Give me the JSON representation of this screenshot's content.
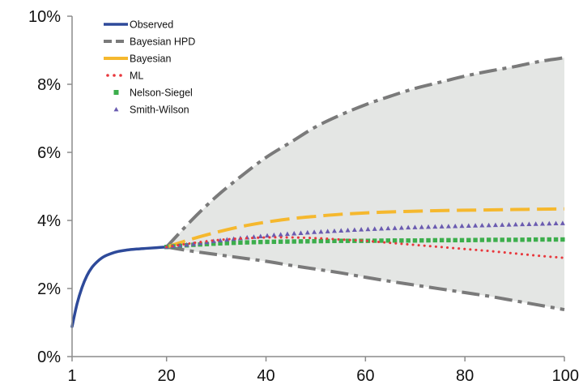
{
  "chart_data": {
    "type": "line",
    "title": "",
    "xlabel": "",
    "ylabel": "",
    "xlim": [
      1,
      100
    ],
    "ylim": [
      0,
      10
    ],
    "x_ticks": [
      1,
      20,
      40,
      60,
      80,
      100
    ],
    "x_tick_labels": [
      "1",
      "20",
      "40",
      "60",
      "80",
      "100"
    ],
    "y_ticks": [
      0,
      2,
      4,
      6,
      8,
      10
    ],
    "y_tick_labels": [
      "0%",
      "2%",
      "4%",
      "6%",
      "8%",
      "10%"
    ],
    "grid": false,
    "legend_position": "top-left",
    "colors": {
      "observed": "#2e4a9a",
      "hpd": "#7a7a7a",
      "hpd_band": "#e4e6e4",
      "bayesian": "#f5b82e",
      "ml": "#e8383d",
      "nelson_siegel": "#3cae4c",
      "smith_wilson": "#6a5bb0",
      "axis": "#8c8c8c"
    },
    "series": [
      {
        "name": "Observed",
        "style": "solid",
        "x": [
          1,
          2,
          3,
          4,
          5,
          6,
          7,
          8,
          10,
          12,
          14,
          16,
          18,
          20
        ],
        "y": [
          0.88,
          1.55,
          2.03,
          2.38,
          2.62,
          2.78,
          2.9,
          2.98,
          3.08,
          3.13,
          3.16,
          3.18,
          3.2,
          3.22
        ]
      },
      {
        "name": "Bayesian HPD",
        "style": "dash-dot",
        "band": true,
        "x": [
          20,
          25,
          30,
          35,
          40,
          45,
          50,
          55,
          60,
          65,
          70,
          75,
          80,
          85,
          90,
          95,
          100
        ],
        "upper": [
          3.22,
          4.0,
          4.7,
          5.3,
          5.85,
          6.3,
          6.75,
          7.1,
          7.4,
          7.65,
          7.88,
          8.06,
          8.24,
          8.39,
          8.52,
          8.67,
          8.78
        ],
        "lower": [
          3.22,
          3.1,
          3.0,
          2.9,
          2.8,
          2.68,
          2.57,
          2.46,
          2.33,
          2.21,
          2.1,
          1.99,
          1.88,
          1.77,
          1.64,
          1.51,
          1.38
        ]
      },
      {
        "name": "Bayesian",
        "style": "long-dash",
        "x": [
          20,
          25,
          30,
          35,
          40,
          45,
          50,
          55,
          60,
          65,
          70,
          75,
          80,
          85,
          90,
          95,
          100
        ],
        "y": [
          3.22,
          3.45,
          3.65,
          3.82,
          3.95,
          4.05,
          4.12,
          4.18,
          4.22,
          4.25,
          4.27,
          4.29,
          4.3,
          4.31,
          4.32,
          4.33,
          4.34
        ]
      },
      {
        "name": "ML",
        "style": "dotted",
        "x": [
          20,
          25,
          30,
          35,
          40,
          45,
          50,
          55,
          60,
          65,
          70,
          75,
          80,
          85,
          90,
          95,
          100
        ],
        "y": [
          3.22,
          3.33,
          3.42,
          3.47,
          3.5,
          3.5,
          3.48,
          3.44,
          3.4,
          3.34,
          3.28,
          3.22,
          3.16,
          3.1,
          3.03,
          2.96,
          2.9
        ]
      },
      {
        "name": "Nelson-Siegel",
        "style": "square-marker",
        "x": [
          20,
          25,
          30,
          35,
          40,
          45,
          50,
          55,
          60,
          65,
          70,
          75,
          80,
          85,
          90,
          95,
          100
        ],
        "y": [
          3.22,
          3.28,
          3.32,
          3.35,
          3.37,
          3.38,
          3.39,
          3.4,
          3.4,
          3.41,
          3.41,
          3.42,
          3.42,
          3.43,
          3.43,
          3.44,
          3.44
        ]
      },
      {
        "name": "Smith-Wilson",
        "style": "triangle-marker",
        "x": [
          20,
          25,
          30,
          35,
          40,
          45,
          50,
          55,
          60,
          65,
          70,
          75,
          80,
          85,
          90,
          95,
          100
        ],
        "y": [
          3.22,
          3.3,
          3.4,
          3.48,
          3.55,
          3.61,
          3.66,
          3.7,
          3.74,
          3.77,
          3.8,
          3.82,
          3.84,
          3.86,
          3.88,
          3.9,
          3.92
        ]
      }
    ]
  }
}
